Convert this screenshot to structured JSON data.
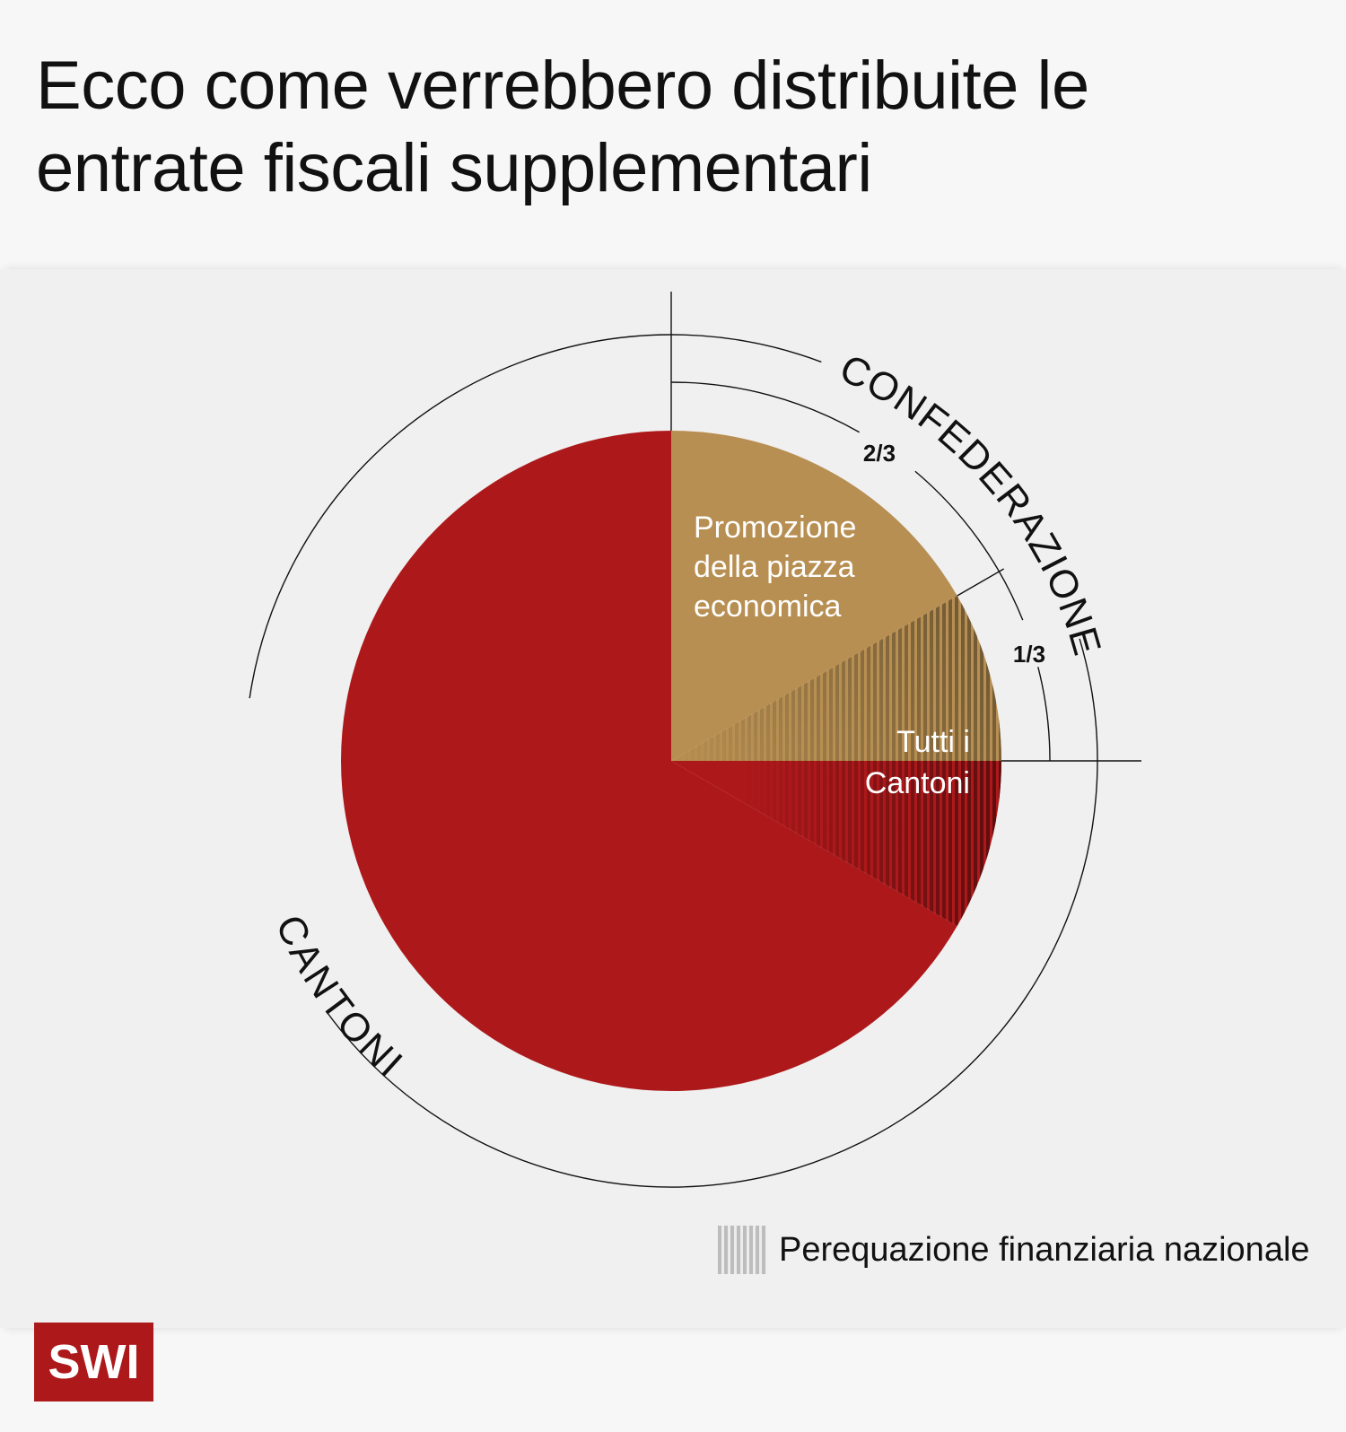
{
  "title": "Ecco come verrebbero distribuite le entrate fiscali supplementari",
  "chart_data": {
    "type": "pie",
    "slices": [
      {
        "label": "Promozione della piazza economica",
        "fraction": 0.16667,
        "group": "CONFEDERAZIONE",
        "color": "#b88f52"
      },
      {
        "label": "Tutti i Cantoni",
        "fraction": 0.08333,
        "group": "CONFEDERAZIONE",
        "color": "#b88f52",
        "pattern": "Perequazione finanziaria nazionale"
      },
      {
        "label": "Tutti i Cantoni",
        "fraction": 0.08333,
        "group": "CANTONI",
        "color": "#ad191b",
        "pattern": "Perequazione finanziaria nazionale"
      },
      {
        "label": "",
        "fraction": 0.66667,
        "group": "CANTONI",
        "color": "#ad191b"
      }
    ],
    "groups": [
      "CONFEDERAZIONE",
      "CANTONI"
    ],
    "fraction_labels": [
      "2/3",
      "1/3"
    ],
    "inner_labels": {
      "promozione": [
        "Promozione",
        "della piazza",
        "economica"
      ],
      "cantoni": [
        "Tutti i",
        "Cantoni"
      ]
    },
    "legend": [
      {
        "label": "Perequazione finanziaria nazionale",
        "pattern": "vertical-stripes"
      }
    ]
  }
}
